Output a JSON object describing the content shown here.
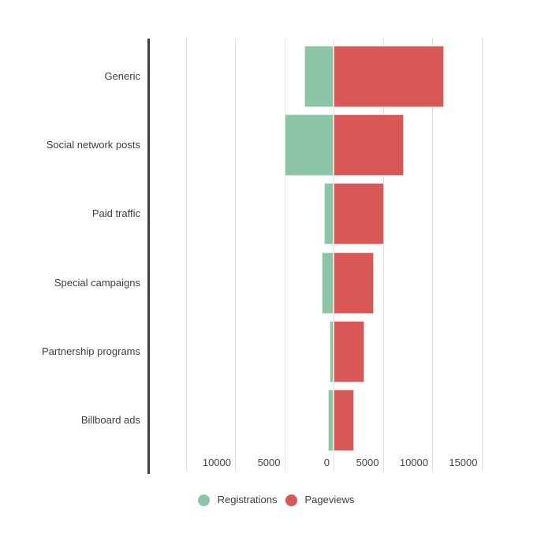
{
  "chart_data": {
    "type": "bar",
    "variant": "diverging-horizontal",
    "title": "",
    "categories": [
      "Generic",
      "Social network posts",
      "Paid traffic",
      "Special campaigns",
      "Partnership programs",
      "Billboard ads"
    ],
    "series": [
      {
        "name": "Registrations",
        "direction": "left",
        "color": "#8cc5a6",
        "border_color": "#d9ecdf",
        "values": [
          3000,
          5000,
          1000,
          1200,
          400,
          550
        ]
      },
      {
        "name": "Pageviews",
        "direction": "right",
        "color": "#d85757",
        "border_color": "#f3cbcb",
        "values": [
          11200,
          7100,
          5100,
          4100,
          3100,
          2100
        ]
      }
    ],
    "x_axis": {
      "gridline_values": [
        -15000,
        -10000,
        -5000,
        0,
        5000,
        10000,
        15000
      ],
      "tick_labels": [
        {
          "value": -10000,
          "label": "10000"
        },
        {
          "value": -5000,
          "label": "5000"
        },
        {
          "value": 0,
          "label": "0"
        },
        {
          "value": 5000,
          "label": "5000"
        },
        {
          "value": 10000,
          "label": "10000"
        },
        {
          "value": 15000,
          "label": "15000"
        }
      ],
      "unit_per_gridline": 5000,
      "grid": true
    },
    "legend": {
      "position": "bottom-center",
      "items": [
        "Registrations",
        "Pageviews"
      ]
    },
    "style_colors": {
      "background": "#ffffff",
      "gridline": "#e0e0e0",
      "axis_line": "#3f3f3f",
      "label_text": "#3d3d3d",
      "tick_text": "#444444"
    }
  }
}
